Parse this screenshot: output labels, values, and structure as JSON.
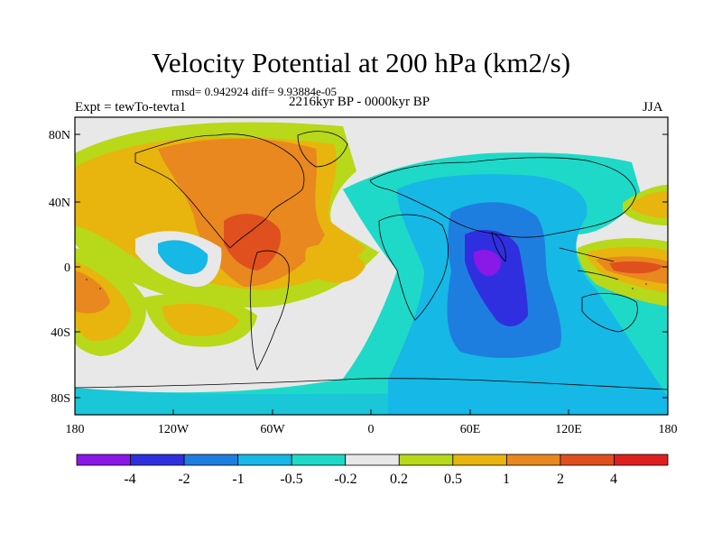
{
  "title": "Velocity Potential at 200 hPa (km2/s)",
  "rmsd_line": "rmsd= 0.942924 diff= 9.93884e-05",
  "left_label": "Expt = tewTo-tevta1",
  "center_label": "2216kyr BP - 0000kyr BP",
  "right_label": "JJA",
  "lat_ticks": [
    "80N",
    "40N",
    "0",
    "40S",
    "80S"
  ],
  "lon_ticks": [
    "180",
    "120W",
    "60W",
    "0",
    "60E",
    "120E",
    "180"
  ],
  "colorbar": {
    "labels": [
      "-4",
      "-2",
      "-1",
      "-0.5",
      "-0.2",
      "0.2",
      "0.5",
      "1",
      "2",
      "4"
    ],
    "colors": [
      "#8a18e6",
      "#2f2fe0",
      "#1e7ee0",
      "#16b8e6",
      "#1ed9c8",
      "#e8e8e8",
      "#b8d81a",
      "#e8b40e",
      "#e8881e",
      "#e0501e",
      "#e0201e"
    ]
  }
}
